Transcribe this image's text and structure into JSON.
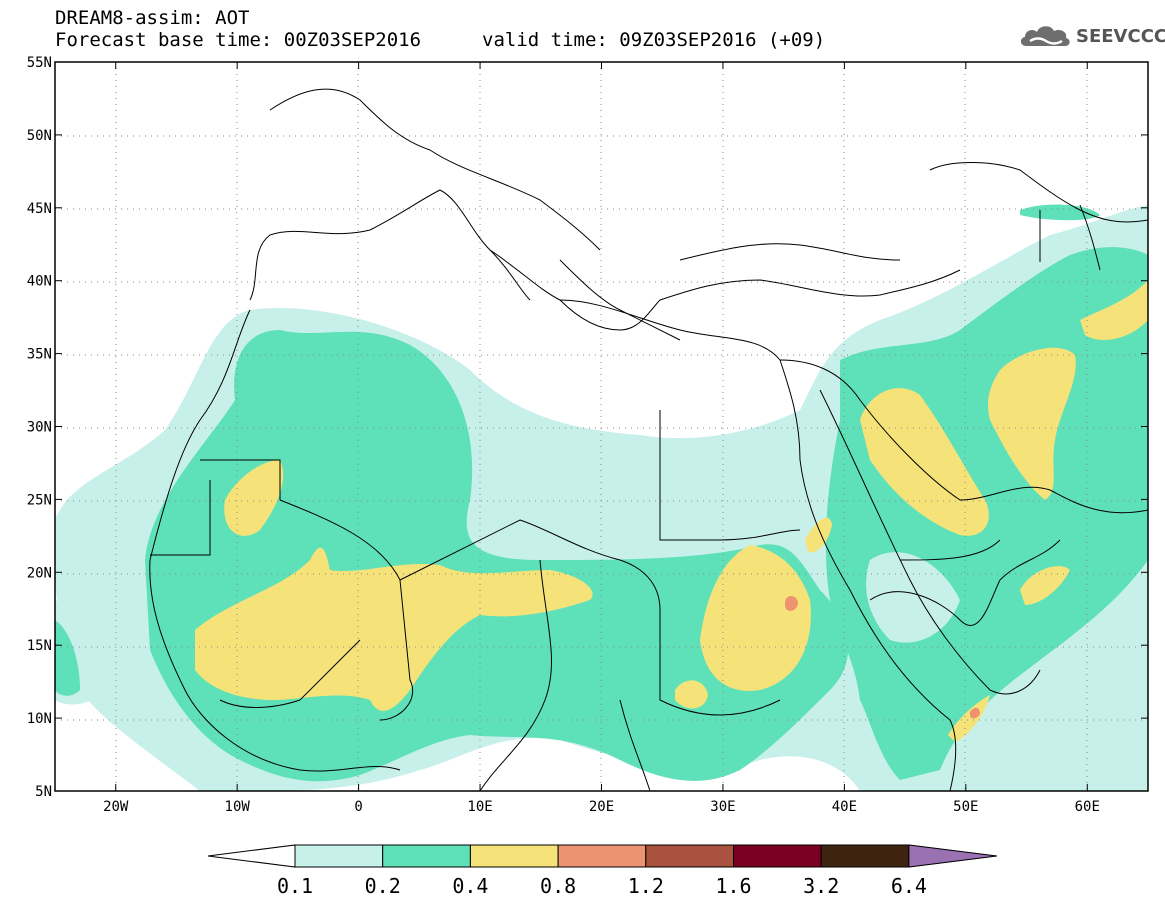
{
  "header": {
    "product": "DREAM8-assim: AOT",
    "base_time": "Forecast base time: 00Z03SEP2016",
    "valid_time": "valid time: 09Z03SEP2016 (+09)",
    "logo_text": "SEEVCCC",
    "logo_icon": "cloud-icon"
  },
  "map": {
    "lon_range": [
      -25,
      65
    ],
    "lat_range": [
      5,
      55
    ],
    "lat_ticks": [
      "55N",
      "50N",
      "45N",
      "40N",
      "35N",
      "30N",
      "25N",
      "20N",
      "15N",
      "10N",
      "5N"
    ],
    "lon_ticks": [
      "20W",
      "10W",
      "0",
      "10E",
      "20E",
      "30E",
      "40E",
      "50E",
      "60E"
    ],
    "grid": "dotted",
    "colors": {
      "c01": "#c8f0ea",
      "c02": "#5ee0b8",
      "c04": "#f5e37a",
      "c08": "#ec9470",
      "c12": "#a95240",
      "c16": "#7a0022",
      "c32": "#3e2410",
      "c64": "#9a72b4"
    }
  },
  "colorbar": {
    "labels": [
      "0.1",
      "0.2",
      "0.4",
      "0.8",
      "1.2",
      "1.6",
      "3.2",
      "6.4"
    ],
    "colors": [
      "#ffffff",
      "#c8f0ea",
      "#5ee0b8",
      "#f5e37a",
      "#ec9470",
      "#a95240",
      "#7a0022",
      "#3e2410",
      "#9a72b4"
    ]
  }
}
